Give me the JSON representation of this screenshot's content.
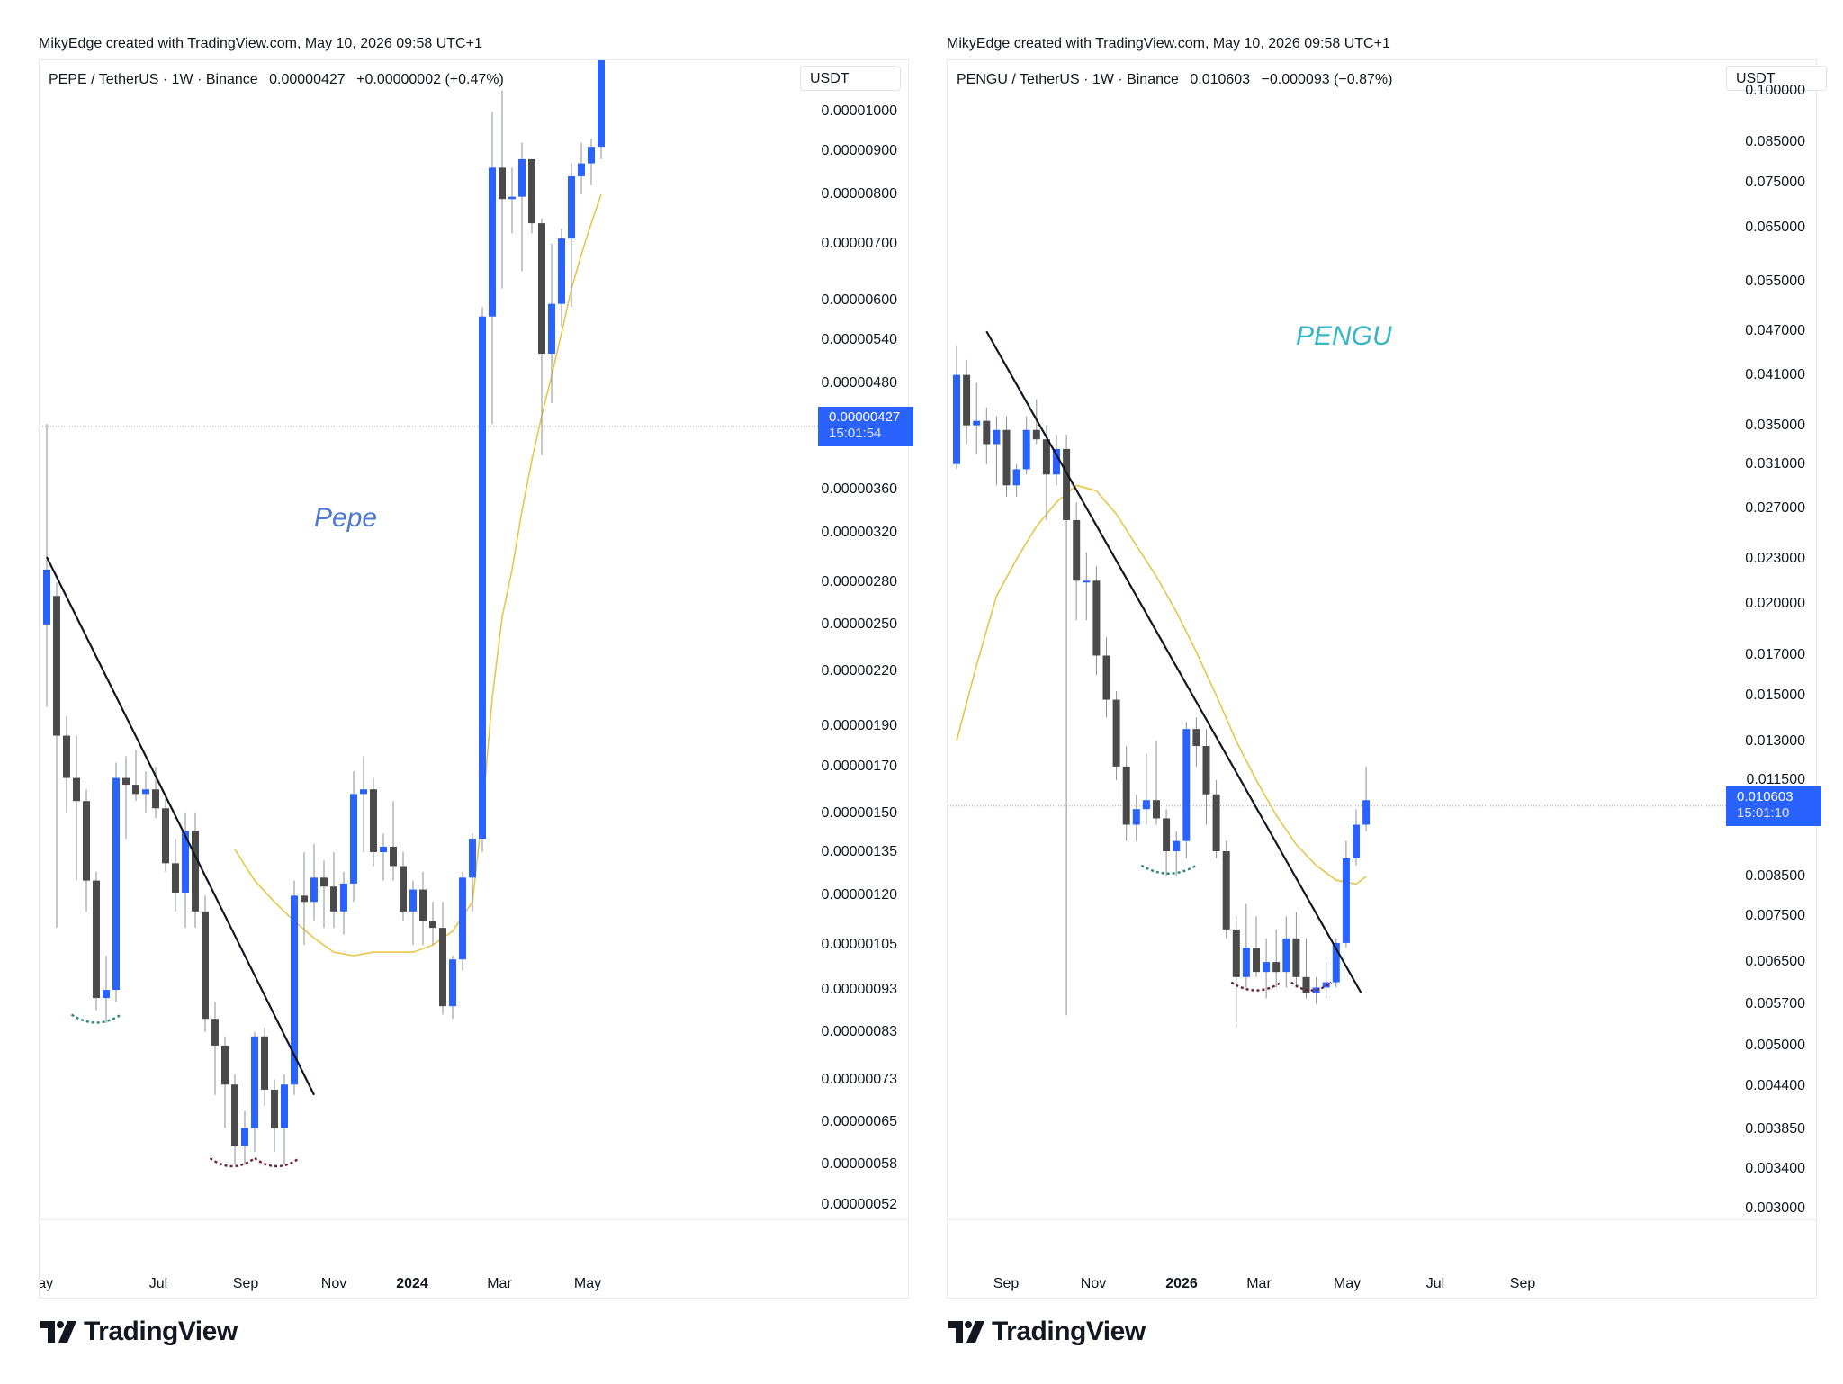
{
  "panels": [
    {
      "caption": "MikyEdge created with TradingView.com, May 10, 2026 09:58 UTC+1",
      "legend": {
        "symbol": "PEPE / TetherUS · 1W · Binance",
        "price": "0.00000427",
        "change": "+0.00000002 (+0.47%)"
      },
      "unit_label": "USDT",
      "annotation": "Pepe",
      "annotation_color": "#4f7ad0",
      "price_tag": {
        "value": "0.00000427",
        "countdown": "15:01:54"
      },
      "brand": "TradingView",
      "colors": {
        "up": "#2962ff",
        "down": "#4a4a4a",
        "ma": "#e8c547",
        "trendline": "#131722"
      }
    },
    {
      "caption": "MikyEdge created with TradingView.com, May 10, 2026 09:58 UTC+1",
      "legend": {
        "symbol": "PENGU / TetherUS · 1W · Binance",
        "price": "0.010603",
        "change": "−0.000093 (−0.87%)"
      },
      "unit_label": "USDT",
      "annotation": "PENGU",
      "annotation_color": "#38b6c4",
      "price_tag": {
        "value": "0.010603",
        "countdown": "15:01:10"
      },
      "brand": "TradingView",
      "colors": {
        "up": "#2962ff",
        "down": "#4a4a4a",
        "ma": "#e8c547",
        "trendline": "#131722"
      }
    }
  ],
  "chart_data": [
    {
      "type": "candlestick",
      "symbol": "PEPE / TetherUS",
      "interval": "1W",
      "y_scale": "log",
      "ylim": [
        5e-07,
        1.15e-05
      ],
      "yticks": [
        "0.00001000",
        "0.00000900",
        "0.00000800",
        "0.00000700",
        "0.00000600",
        "0.00000540",
        "0.00000480",
        "0.00000360",
        "0.00000320",
        "0.00000280",
        "0.00000250",
        "0.00000220",
        "0.00000190",
        "0.00000170",
        "0.00000150",
        "0.00000135",
        "0.00000120",
        "0.00000105",
        "0.00000093",
        "0.00000083",
        "0.00000073",
        "0.00000065",
        "0.00000058",
        "0.00000052"
      ],
      "xticks": [
        "May",
        "Jul",
        "Sep",
        "Nov",
        "2024",
        "Mar",
        "May"
      ],
      "xticks_bold": [
        false,
        false,
        false,
        false,
        true,
        false,
        false
      ],
      "x_period_start": "2023-05-01",
      "last_price": 4.27e-06,
      "candles": [
        {
          "o": 2.5e-06,
          "h": 4.3e-06,
          "l": 2e-06,
          "c": 2.9e-06
        },
        {
          "o": 2.7e-06,
          "h": 2.8e-06,
          "l": 1.1e-06,
          "c": 1.85e-06
        },
        {
          "o": 1.85e-06,
          "h": 1.95e-06,
          "l": 1.5e-06,
          "c": 1.65e-06
        },
        {
          "o": 1.65e-06,
          "h": 1.85e-06,
          "l": 1.25e-06,
          "c": 1.55e-06
        },
        {
          "o": 1.55e-06,
          "h": 1.6e-06,
          "l": 1.15e-06,
          "c": 1.25e-06
        },
        {
          "o": 1.25e-06,
          "h": 1.28e-06,
          "l": 8.8e-07,
          "c": 9.1e-07
        },
        {
          "o": 9.1e-07,
          "h": 1.02e-06,
          "l": 8.5e-07,
          "c": 9.3e-07
        },
        {
          "o": 9.3e-07,
          "h": 1.72e-06,
          "l": 9e-07,
          "c": 1.65e-06
        },
        {
          "o": 1.65e-06,
          "h": 1.75e-06,
          "l": 1.4e-06,
          "c": 1.62e-06
        },
        {
          "o": 1.62e-06,
          "h": 1.78e-06,
          "l": 1.55e-06,
          "c": 1.58e-06
        },
        {
          "o": 1.58e-06,
          "h": 1.68e-06,
          "l": 1.5e-06,
          "c": 1.6e-06
        },
        {
          "o": 1.6e-06,
          "h": 1.7e-06,
          "l": 1.48e-06,
          "c": 1.52e-06
        },
        {
          "o": 1.52e-06,
          "h": 1.58e-06,
          "l": 1.28e-06,
          "c": 1.31e-06
        },
        {
          "o": 1.31e-06,
          "h": 1.4e-06,
          "l": 1.15e-06,
          "c": 1.21e-06
        },
        {
          "o": 1.21e-06,
          "h": 1.5e-06,
          "l": 1.1e-06,
          "c": 1.43e-06
        },
        {
          "o": 1.43e-06,
          "h": 1.5e-06,
          "l": 1.1e-06,
          "c": 1.15e-06
        },
        {
          "o": 1.15e-06,
          "h": 1.2e-06,
          "l": 8.3e-07,
          "c": 8.6e-07
        },
        {
          "o": 8.6e-07,
          "h": 9e-07,
          "l": 7e-07,
          "c": 8e-07
        },
        {
          "o": 8e-07,
          "h": 8.2e-07,
          "l": 6.4e-07,
          "c": 7.2e-07
        },
        {
          "o": 7.2e-07,
          "h": 7.4e-07,
          "l": 5.8e-07,
          "c": 6.1e-07
        },
        {
          "o": 6.1e-07,
          "h": 6.7e-07,
          "l": 5.8e-07,
          "c": 6.4e-07
        },
        {
          "o": 6.4e-07,
          "h": 8.3e-07,
          "l": 6e-07,
          "c": 8.2e-07
        },
        {
          "o": 8.2e-07,
          "h": 8.4e-07,
          "l": 6.8e-07,
          "c": 7.1e-07
        },
        {
          "o": 7.1e-07,
          "h": 7.3e-07,
          "l": 6e-07,
          "c": 6.4e-07
        },
        {
          "o": 6.4e-07,
          "h": 7.4e-07,
          "l": 5.8e-07,
          "c": 7.2e-07
        },
        {
          "o": 7.2e-07,
          "h": 1.25e-06,
          "l": 7e-07,
          "c": 1.2e-06
        },
        {
          "o": 1.2e-06,
          "h": 1.35e-06,
          "l": 1.05e-06,
          "c": 1.18e-06
        },
        {
          "o": 1.18e-06,
          "h": 1.38e-06,
          "l": 1.12e-06,
          "c": 1.26e-06
        },
        {
          "o": 1.26e-06,
          "h": 1.32e-06,
          "l": 1.1e-06,
          "c": 1.23e-06
        },
        {
          "o": 1.23e-06,
          "h": 1.35e-06,
          "l": 1.1e-06,
          "c": 1.15e-06
        },
        {
          "o": 1.15e-06,
          "h": 1.28e-06,
          "l": 1.08e-06,
          "c": 1.24e-06
        },
        {
          "o": 1.24e-06,
          "h": 1.68e-06,
          "l": 1.18e-06,
          "c": 1.58e-06
        },
        {
          "o": 1.58e-06,
          "h": 1.75e-06,
          "l": 1.35e-06,
          "c": 1.6e-06
        },
        {
          "o": 1.6e-06,
          "h": 1.65e-06,
          "l": 1.3e-06,
          "c": 1.35e-06
        },
        {
          "o": 1.35e-06,
          "h": 1.42e-06,
          "l": 1.25e-06,
          "c": 1.37e-06
        },
        {
          "o": 1.37e-06,
          "h": 1.55e-06,
          "l": 1.25e-06,
          "c": 1.3e-06
        },
        {
          "o": 1.3e-06,
          "h": 1.35e-06,
          "l": 1.12e-06,
          "c": 1.15e-06
        },
        {
          "o": 1.15e-06,
          "h": 1.25e-06,
          "l": 1.05e-06,
          "c": 1.22e-06
        },
        {
          "o": 1.22e-06,
          "h": 1.28e-06,
          "l": 1.05e-06,
          "c": 1.12e-06
        },
        {
          "o": 1.12e-06,
          "h": 1.18e-06,
          "l": 1.05e-06,
          "c": 1.1e-06
        },
        {
          "o": 1.1e-06,
          "h": 1.18e-06,
          "l": 8.7e-07,
          "c": 8.9e-07
        },
        {
          "o": 8.9e-07,
          "h": 1.02e-06,
          "l": 8.6e-07,
          "c": 1.01e-06
        },
        {
          "o": 1.01e-06,
          "h": 1.28e-06,
          "l": 9.8e-07,
          "c": 1.26e-06
        },
        {
          "o": 1.26e-06,
          "h": 1.42e-06,
          "l": 1.15e-06,
          "c": 1.4e-06
        },
        {
          "o": 1.4e-06,
          "h": 5.9e-06,
          "l": 1.35e-06,
          "c": 5.75e-06
        },
        {
          "o": 5.75e-06,
          "h": 1e-05,
          "l": 4.3e-06,
          "c": 8.6e-06
        },
        {
          "o": 8.6e-06,
          "h": 1.06e-05,
          "l": 6.2e-06,
          "c": 7.9e-06
        },
        {
          "o": 7.9e-06,
          "h": 8.6e-06,
          "l": 7.2e-06,
          "c": 7.95e-06
        },
        {
          "o": 7.95e-06,
          "h": 9.2e-06,
          "l": 6.5e-06,
          "c": 8.8e-06
        },
        {
          "o": 8.8e-06,
          "h": 8.8e-06,
          "l": 7.2e-06,
          "c": 7.4e-06
        },
        {
          "o": 7.4e-06,
          "h": 7.5e-06,
          "l": 3.95e-06,
          "c": 5.2e-06
        },
        {
          "o": 5.2e-06,
          "h": 7e-06,
          "l": 4.55e-06,
          "c": 5.95e-06
        },
        {
          "o": 5.95e-06,
          "h": 7.3e-06,
          "l": 5.6e-06,
          "c": 7.1e-06
        },
        {
          "o": 7.1e-06,
          "h": 8.7e-06,
          "l": 5.9e-06,
          "c": 8.4e-06
        },
        {
          "o": 8.4e-06,
          "h": 9.2e-06,
          "l": 8e-06,
          "c": 8.7e-06
        },
        {
          "o": 8.7e-06,
          "h": 9.3e-06,
          "l": 8.2e-06,
          "c": 9.1e-06
        },
        {
          "o": 9.1e-06,
          "h": 1.18e-05,
          "l": 8.8e-06,
          "c": 1.15e-05
        }
      ],
      "ma": [
        {
          "i": 19,
          "v": 1.36e-06
        },
        {
          "i": 21,
          "v": 1.25e-06
        },
        {
          "i": 23,
          "v": 1.18e-06
        },
        {
          "i": 25,
          "v": 1.12e-06
        },
        {
          "i": 27,
          "v": 1.07e-06
        },
        {
          "i": 29,
          "v": 1.03e-06
        },
        {
          "i": 31,
          "v": 1.02e-06
        },
        {
          "i": 33,
          "v": 1.03e-06
        },
        {
          "i": 35,
          "v": 1.03e-06
        },
        {
          "i": 37,
          "v": 1.03e-06
        },
        {
          "i": 39,
          "v": 1.05e-06
        },
        {
          "i": 41,
          "v": 1.09e-06
        },
        {
          "i": 43,
          "v": 1.18e-06
        },
        {
          "i": 44,
          "v": 1.5e-06
        },
        {
          "i": 45,
          "v": 2.05e-06
        },
        {
          "i": 46,
          "v": 2.55e-06
        },
        {
          "i": 47,
          "v": 2.9e-06
        },
        {
          "i": 48,
          "v": 3.4e-06
        },
        {
          "i": 49,
          "v": 3.9e-06
        },
        {
          "i": 50,
          "v": 4.4e-06
        },
        {
          "i": 51,
          "v": 4.9e-06
        },
        {
          "i": 52,
          "v": 5.5e-06
        },
        {
          "i": 53,
          "v": 6.2e-06
        },
        {
          "i": 54,
          "v": 6.8e-06
        },
        {
          "i": 55,
          "v": 7.4e-06
        },
        {
          "i": 56,
          "v": 8e-06
        }
      ],
      "trendline": [
        {
          "i": 0,
          "v": 3e-06
        },
        {
          "i": 27,
          "v": 7e-07
        }
      ],
      "arcs": [
        {
          "from": 2.5,
          "to": 7.5,
          "price": 8.7e-07,
          "color": "#2a8a7a"
        },
        {
          "from": 16.5,
          "to": 21.0,
          "price": 5.9e-07,
          "color": "#6b2233"
        },
        {
          "from": 21.0,
          "to": 25.5,
          "price": 5.9e-07,
          "color": "#6b2233"
        }
      ]
    },
    {
      "type": "candlestick",
      "symbol": "PENGU / TetherUS",
      "interval": "1W",
      "y_scale": "log",
      "ylim": [
        0.0029,
        0.11
      ],
      "yticks": [
        "0.100000",
        "0.085000",
        "0.075000",
        "0.065000",
        "0.055000",
        "0.047000",
        "0.041000",
        "0.035000",
        "0.031000",
        "0.027000",
        "0.023000",
        "0.020000",
        "0.017000",
        "0.015000",
        "0.013000",
        "0.011500",
        "0.008500",
        "0.007500",
        "0.006500",
        "0.005700",
        "0.005000",
        "0.004400",
        "0.003850",
        "0.003400",
        "0.003000"
      ],
      "xticks": [
        "Sep",
        "Nov",
        "2026",
        "Mar",
        "May",
        "Jul",
        "Sep"
      ],
      "xticks_bold": [
        false,
        false,
        true,
        false,
        false,
        false,
        false
      ],
      "x_period_start": "2025-07-21",
      "last_price": 0.010603,
      "candles": [
        {
          "o": 0.031,
          "h": 0.045,
          "l": 0.0305,
          "c": 0.041
        },
        {
          "o": 0.041,
          "h": 0.043,
          "l": 0.033,
          "c": 0.035
        },
        {
          "o": 0.035,
          "h": 0.04,
          "l": 0.032,
          "c": 0.0355
        },
        {
          "o": 0.0355,
          "h": 0.037,
          "l": 0.031,
          "c": 0.033
        },
        {
          "o": 0.033,
          "h": 0.036,
          "l": 0.029,
          "c": 0.0345
        },
        {
          "o": 0.0345,
          "h": 0.036,
          "l": 0.028,
          "c": 0.029
        },
        {
          "o": 0.029,
          "h": 0.031,
          "l": 0.028,
          "c": 0.0305
        },
        {
          "o": 0.0305,
          "h": 0.036,
          "l": 0.03,
          "c": 0.0345
        },
        {
          "o": 0.0345,
          "h": 0.038,
          "l": 0.033,
          "c": 0.0335
        },
        {
          "o": 0.0335,
          "h": 0.035,
          "l": 0.026,
          "c": 0.03
        },
        {
          "o": 0.03,
          "h": 0.034,
          "l": 0.029,
          "c": 0.0325
        },
        {
          "o": 0.0325,
          "h": 0.034,
          "l": 0.0055,
          "c": 0.026
        },
        {
          "o": 0.026,
          "h": 0.0275,
          "l": 0.019,
          "c": 0.0215
        },
        {
          "o": 0.0215,
          "h": 0.0235,
          "l": 0.019,
          "c": 0.0215
        },
        {
          "o": 0.0215,
          "h": 0.0225,
          "l": 0.016,
          "c": 0.017
        },
        {
          "o": 0.017,
          "h": 0.018,
          "l": 0.014,
          "c": 0.0148
        },
        {
          "o": 0.0148,
          "h": 0.0152,
          "l": 0.0115,
          "c": 0.012
        },
        {
          "o": 0.012,
          "h": 0.0128,
          "l": 0.0095,
          "c": 0.01
        },
        {
          "o": 0.01,
          "h": 0.011,
          "l": 0.0095,
          "c": 0.0105
        },
        {
          "o": 0.0105,
          "h": 0.0125,
          "l": 0.01,
          "c": 0.0108
        },
        {
          "o": 0.0108,
          "h": 0.013,
          "l": 0.01,
          "c": 0.0102
        },
        {
          "o": 0.0102,
          "h": 0.0105,
          "l": 0.0085,
          "c": 0.0092
        },
        {
          "o": 0.0092,
          "h": 0.0098,
          "l": 0.0085,
          "c": 0.0095
        },
        {
          "o": 0.0095,
          "h": 0.0138,
          "l": 0.009,
          "c": 0.0135
        },
        {
          "o": 0.0135,
          "h": 0.014,
          "l": 0.012,
          "c": 0.0128
        },
        {
          "o": 0.0128,
          "h": 0.0135,
          "l": 0.01,
          "c": 0.011
        },
        {
          "o": 0.011,
          "h": 0.0115,
          "l": 0.009,
          "c": 0.0092
        },
        {
          "o": 0.0092,
          "h": 0.0095,
          "l": 0.007,
          "c": 0.0072
        },
        {
          "o": 0.0072,
          "h": 0.0075,
          "l": 0.0053,
          "c": 0.0062
        },
        {
          "o": 0.0062,
          "h": 0.0078,
          "l": 0.006,
          "c": 0.0068
        },
        {
          "o": 0.0068,
          "h": 0.0075,
          "l": 0.0062,
          "c": 0.0063
        },
        {
          "o": 0.0063,
          "h": 0.007,
          "l": 0.0058,
          "c": 0.0065
        },
        {
          "o": 0.0065,
          "h": 0.0072,
          "l": 0.006,
          "c": 0.0063
        },
        {
          "o": 0.0063,
          "h": 0.0075,
          "l": 0.006,
          "c": 0.007
        },
        {
          "o": 0.007,
          "h": 0.0076,
          "l": 0.006,
          "c": 0.0062
        },
        {
          "o": 0.0062,
          "h": 0.007,
          "l": 0.0058,
          "c": 0.0059
        },
        {
          "o": 0.0059,
          "h": 0.0062,
          "l": 0.0057,
          "c": 0.006
        },
        {
          "o": 0.006,
          "h": 0.0065,
          "l": 0.0058,
          "c": 0.0061
        },
        {
          "o": 0.0061,
          "h": 0.007,
          "l": 0.006,
          "c": 0.0069
        },
        {
          "o": 0.0069,
          "h": 0.0095,
          "l": 0.0068,
          "c": 0.009
        },
        {
          "o": 0.009,
          "h": 0.0105,
          "l": 0.0088,
          "c": 0.01
        },
        {
          "o": 0.01,
          "h": 0.012,
          "l": 0.0098,
          "c": 0.0108
        }
      ],
      "ma": [
        {
          "i": 0,
          "v": 0.013
        },
        {
          "i": 2,
          "v": 0.0165
        },
        {
          "i": 4,
          "v": 0.0205
        },
        {
          "i": 6,
          "v": 0.023
        },
        {
          "i": 8,
          "v": 0.0255
        },
        {
          "i": 10,
          "v": 0.0275
        },
        {
          "i": 12,
          "v": 0.029
        },
        {
          "i": 14,
          "v": 0.0285
        },
        {
          "i": 16,
          "v": 0.0265
        },
        {
          "i": 18,
          "v": 0.024
        },
        {
          "i": 20,
          "v": 0.0218
        },
        {
          "i": 22,
          "v": 0.0195
        },
        {
          "i": 24,
          "v": 0.0172
        },
        {
          "i": 26,
          "v": 0.015
        },
        {
          "i": 28,
          "v": 0.013
        },
        {
          "i": 30,
          "v": 0.0115
        },
        {
          "i": 32,
          "v": 0.0103
        },
        {
          "i": 34,
          "v": 0.0094
        },
        {
          "i": 36,
          "v": 0.0088
        },
        {
          "i": 38,
          "v": 0.0084
        },
        {
          "i": 40,
          "v": 0.0083
        },
        {
          "i": 41,
          "v": 0.0085
        }
      ],
      "trendline": [
        {
          "i": 3,
          "v": 0.047
        },
        {
          "i": 40.5,
          "v": 0.0059
        }
      ],
      "arcs": [
        {
          "from": 18.5,
          "to": 24.0,
          "price": 0.0088,
          "color": "#2a8a7a"
        },
        {
          "from": 27.5,
          "to": 32.5,
          "price": 0.0061,
          "color": "#6b2233"
        },
        {
          "from": 33.5,
          "to": 37.5,
          "price": 0.0061,
          "color": "#6b2233"
        }
      ]
    }
  ]
}
